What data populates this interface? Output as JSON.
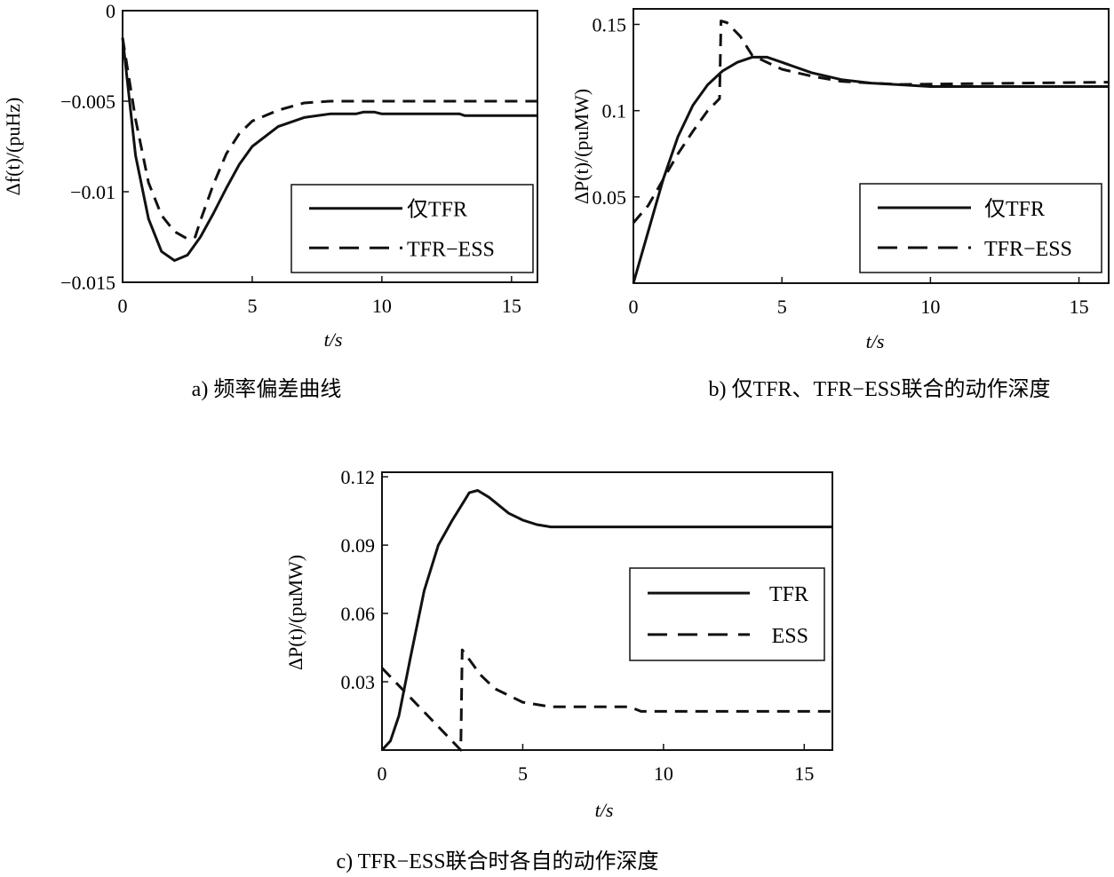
{
  "chart_data": [
    {
      "type": "line",
      "id": "a",
      "caption": "a) 频率偏差曲线",
      "xlabel": "t/s",
      "ylabel": "Δf(t)/(puHz)",
      "xlim": [
        0,
        16
      ],
      "ylim": [
        -0.015,
        0
      ],
      "xticks": [
        0,
        5,
        10,
        15
      ],
      "xtick_labels": [
        "0",
        "5",
        "10",
        "15"
      ],
      "yticks": [
        0,
        -0.005,
        -0.01,
        -0.015
      ],
      "ytick_labels": [
        "0",
        "−0.005",
        "−0.01",
        "−0.015"
      ],
      "legend_position": "lower-right",
      "series": [
        {
          "name": "仅TFR",
          "style": "solid",
          "x": [
            0,
            0.5,
            1,
            1.5,
            2,
            2.5,
            3,
            3.5,
            4,
            4.5,
            5,
            6,
            7,
            8,
            9,
            9.3,
            9.7,
            10,
            13,
            13.2,
            16
          ],
          "y": [
            -0.0015,
            -0.008,
            -0.0115,
            -0.0133,
            -0.0138,
            -0.0135,
            -0.0125,
            -0.0112,
            -0.0098,
            -0.0085,
            -0.0075,
            -0.0064,
            -0.0059,
            -0.0057,
            -0.0057,
            -0.0056,
            -0.0056,
            -0.0057,
            -0.0057,
            -0.0058,
            -0.0058
          ]
        },
        {
          "name": "TFR−ESS",
          "style": "dashed",
          "x": [
            0,
            0.5,
            1,
            1.5,
            2,
            2.5,
            2.8,
            3,
            3.5,
            4,
            4.5,
            5,
            6,
            7,
            8,
            16
          ],
          "y": [
            -0.0015,
            -0.006,
            -0.0095,
            -0.0113,
            -0.0122,
            -0.0126,
            -0.0125,
            -0.0116,
            -0.0096,
            -0.0079,
            -0.0068,
            -0.0061,
            -0.0055,
            -0.0051,
            -0.005,
            -0.005
          ]
        }
      ]
    },
    {
      "type": "line",
      "id": "b",
      "caption": "b) 仅TFR、TFR−ESS联合的动作深度",
      "xlabel": "t/s",
      "ylabel": "ΔP(t)/(puMW)",
      "xlim": [
        0,
        16
      ],
      "ylim": [
        0,
        0.159
      ],
      "xticks": [
        0,
        5,
        10,
        15
      ],
      "xtick_labels": [
        "0",
        "5",
        "10",
        "15"
      ],
      "yticks": [
        0.05,
        0.1,
        0.15
      ],
      "ytick_labels": [
        "0.05",
        "0.1",
        "0.15"
      ],
      "legend_position": "lower-right",
      "series": [
        {
          "name": "仅TFR",
          "style": "solid",
          "x": [
            0,
            0.5,
            1,
            1.5,
            2,
            2.5,
            3,
            3.5,
            4,
            4.5,
            5,
            6,
            7,
            8,
            9,
            10,
            16
          ],
          "y": [
            0,
            0.03,
            0.06,
            0.085,
            0.103,
            0.115,
            0.123,
            0.128,
            0.131,
            0.131,
            0.128,
            0.122,
            0.118,
            0.116,
            0.115,
            0.114,
            0.114
          ]
        },
        {
          "name": "TFR−ESS",
          "style": "dashed",
          "x": [
            0,
            0.5,
            1,
            1.5,
            2,
            2.5,
            2.9,
            2.95,
            3.15,
            3.6,
            4,
            5,
            6,
            7,
            8,
            9,
            16
          ],
          "y": [
            0.035,
            0.045,
            0.06,
            0.075,
            0.088,
            0.1,
            0.107,
            0.152,
            0.151,
            0.143,
            0.132,
            0.124,
            0.12,
            0.117,
            0.116,
            0.1152,
            0.1165
          ]
        }
      ]
    },
    {
      "type": "line",
      "id": "c",
      "caption": "c) TFR−ESS联合时各自的动作深度",
      "xlabel": "t/s",
      "ylabel": "ΔP(t)/(puMW)",
      "xlim": [
        0,
        16
      ],
      "ylim": [
        0,
        0.122
      ],
      "xticks": [
        0,
        5,
        10,
        15
      ],
      "xtick_labels": [
        "0",
        "5",
        "10",
        "15"
      ],
      "yticks": [
        0.03,
        0.06,
        0.09,
        0.12
      ],
      "ytick_labels": [
        "0.03",
        "0.06",
        "0.09",
        "0.12"
      ],
      "legend_position": "center-right",
      "series": [
        {
          "name": "TFR",
          "style": "solid",
          "x": [
            0,
            0.3,
            0.6,
            1,
            1.5,
            2,
            2.5,
            2.9,
            3.1,
            3.4,
            3.8,
            4.5,
            5,
            5.5,
            6,
            16
          ],
          "y": [
            0,
            0.004,
            0.015,
            0.04,
            0.07,
            0.09,
            0.101,
            0.109,
            0.113,
            0.114,
            0.111,
            0.104,
            0.101,
            0.099,
            0.098,
            0.098
          ]
        },
        {
          "name": "ESS",
          "style": "dashed",
          "x": [
            0,
            2.8,
            2.85,
            3.5,
            4,
            5,
            6,
            8.8,
            9.2,
            16
          ],
          "y": [
            0.036,
            0,
            0.044,
            0.033,
            0.027,
            0.021,
            0.019,
            0.019,
            0.017,
            0.017
          ]
        }
      ]
    }
  ]
}
